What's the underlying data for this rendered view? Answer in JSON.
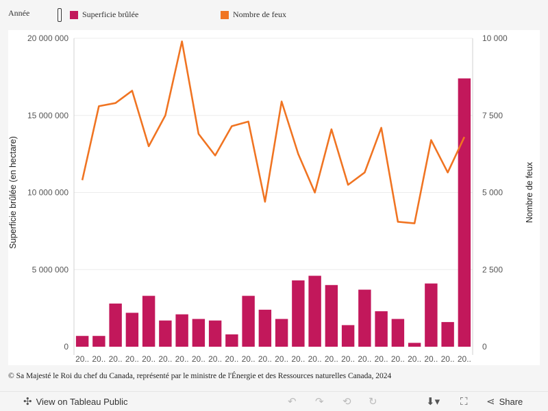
{
  "legend": {
    "title": "Année",
    "items": [
      {
        "label": "Superficie brûlée",
        "color": "#c2185b"
      },
      {
        "label": "Nombre de feux",
        "color": "#f07422"
      }
    ]
  },
  "chart_data": {
    "type": "bar+line",
    "categories": [
      "20..",
      "20..",
      "20..",
      "20..",
      "20..",
      "20..",
      "20..",
      "20..",
      "20..",
      "20..",
      "20..",
      "20..",
      "20..",
      "20..",
      "20..",
      "20..",
      "20..",
      "20..",
      "20..",
      "20..",
      "20..",
      "20..",
      "20..",
      "20.."
    ],
    "series": [
      {
        "name": "Superficie brûlée",
        "type": "bar",
        "axis": "left",
        "color": "#c2185b",
        "values": [
          700000,
          700000,
          2800000,
          2200000,
          3300000,
          1700000,
          2100000,
          1800000,
          1700000,
          800000,
          3300000,
          2400000,
          1800000,
          4300000,
          4600000,
          4000000,
          1400000,
          3700000,
          2300000,
          1800000,
          250000,
          4100000,
          1600000,
          17400000
        ]
      },
      {
        "name": "Nombre de feux",
        "type": "line",
        "axis": "right",
        "color": "#f07422",
        "values": [
          5400,
          7800,
          7900,
          8300,
          6500,
          7500,
          9900,
          6900,
          6200,
          7150,
          7300,
          4700,
          7950,
          6250,
          5000,
          7050,
          5250,
          5650,
          7100,
          4050,
          4000,
          6700,
          5650,
          6800
        ]
      }
    ],
    "ylabel_left": "Superficie brûlée (en hectare)",
    "ylabel_right": "Nombre de feux",
    "ylim_left": [
      0,
      20000000
    ],
    "ylim_right": [
      0,
      10000
    ],
    "yticks_left": [
      "0",
      "5 000 000",
      "10 000 000",
      "15 000 000",
      "20 000 000"
    ],
    "yticks_right": [
      "0",
      "2 500",
      "5 000",
      "7 500",
      "10 000"
    ],
    "grid": true
  },
  "footer": "© Sa Majesté le Roi du chef du Canada, représenté par le ministre de l'Énergie et des Ressources naturelles Canada, 2024",
  "toolbar": {
    "view_label": "View on Tableau Public",
    "share_label": "Share"
  }
}
